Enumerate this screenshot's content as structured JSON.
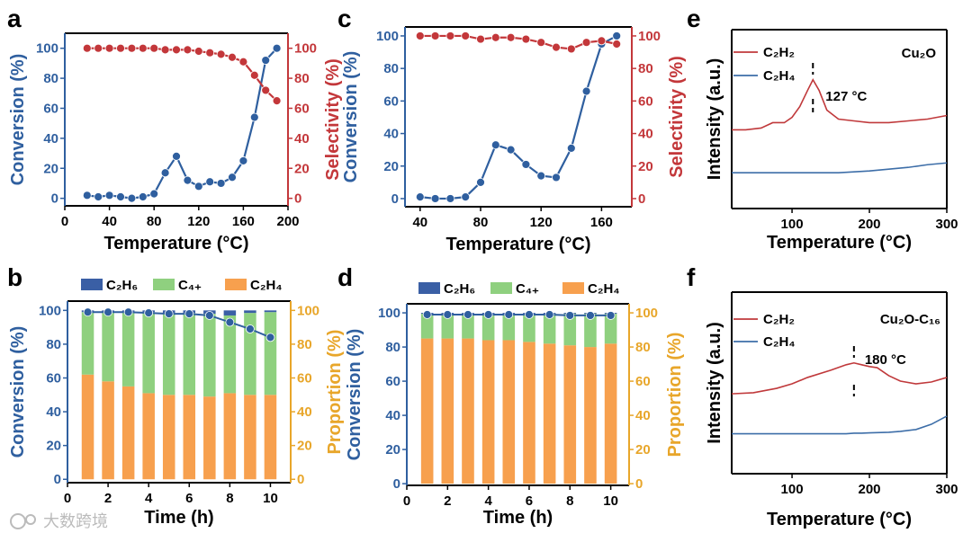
{
  "watermark": "大数跨境",
  "chart_data": [
    {
      "letter": "a",
      "type": "line",
      "xlabel": "Temperature (°C)",
      "ylabel": "Conversion (%)",
      "y2label": "Selectivity (%)",
      "xlim": [
        0,
        200
      ],
      "ylim": [
        0,
        100
      ],
      "y2lim": [
        0,
        100
      ],
      "xticks": [
        0,
        40,
        80,
        120,
        160,
        200
      ],
      "yticks": [
        0,
        20,
        40,
        60,
        80,
        100
      ],
      "y2ticks": [
        0,
        20,
        40,
        60,
        80,
        100
      ],
      "colors": {
        "y": "#2f5f9f",
        "y2": "#c3373a"
      },
      "x": [
        20,
        30,
        40,
        50,
        60,
        70,
        80,
        90,
        100,
        110,
        120,
        130,
        140,
        150,
        160,
        170,
        180,
        190
      ],
      "lines": [
        {
          "name": "Conversion",
          "axis": "y",
          "color": "#2f5f9f",
          "values": [
            2,
            1,
            2,
            1,
            0,
            1,
            3,
            17,
            28,
            12,
            8,
            11,
            10,
            14,
            25,
            54,
            92,
            100
          ]
        },
        {
          "name": "Selectivity",
          "axis": "y2",
          "color": "#c3373a",
          "values": [
            100,
            100,
            100,
            100,
            100,
            100,
            100,
            99,
            99,
            99,
            98,
            97,
            96,
            94,
            91,
            82,
            72,
            65
          ]
        }
      ]
    },
    {
      "letter": "c",
      "type": "line",
      "xlabel": "Temperature (°C)",
      "ylabel": "Conversion (%)",
      "y2label": "Selectivity (%)",
      "xlim": [
        30,
        180
      ],
      "ylim": [
        0,
        100
      ],
      "y2lim": [
        0,
        100
      ],
      "xticks": [
        40,
        80,
        120,
        160
      ],
      "yticks": [
        0,
        20,
        40,
        60,
        80,
        100
      ],
      "y2ticks": [
        0,
        20,
        40,
        60,
        80,
        100
      ],
      "colors": {
        "y": "#2f5f9f",
        "y2": "#c3373a"
      },
      "x": [
        40,
        50,
        60,
        70,
        80,
        90,
        100,
        110,
        120,
        130,
        140,
        150,
        160,
        170
      ],
      "lines": [
        {
          "name": "Conversion",
          "axis": "y",
          "color": "#2f5f9f",
          "values": [
            1,
            0,
            0,
            1,
            10,
            33,
            30,
            21,
            14,
            13,
            31,
            66,
            95,
            100
          ]
        },
        {
          "name": "Selectivity",
          "axis": "y2",
          "color": "#c3373a",
          "values": [
            100,
            100,
            100,
            100,
            98,
            99,
            99,
            98,
            96,
            93,
            92,
            96,
            97,
            95
          ]
        }
      ]
    },
    {
      "letter": "e",
      "type": "line",
      "xlabel": "Temperature (°C)",
      "ylabel": "Intensity (a.u.)",
      "xlim": [
        22,
        300
      ],
      "ylim": [
        0,
        1
      ],
      "xticks": [
        100,
        200,
        300
      ],
      "yticks": [],
      "colors": {
        "y": "#000000"
      },
      "sample": "Cu₂O",
      "annotation": {
        "x": 127,
        "label": "127 °C"
      },
      "x": [
        22,
        40,
        60,
        75,
        90,
        100,
        110,
        120,
        127,
        135,
        145,
        160,
        180,
        200,
        225,
        250,
        275,
        300
      ],
      "lines": [
        {
          "name": "C₂H₂",
          "axis": "y",
          "color": "#c0393b",
          "values": [
            0.44,
            0.44,
            0.45,
            0.48,
            0.48,
            0.51,
            0.57,
            0.66,
            0.72,
            0.66,
            0.55,
            0.5,
            0.49,
            0.48,
            0.48,
            0.49,
            0.5,
            0.52
          ]
        },
        {
          "name": "C₂H₄",
          "axis": "y",
          "color": "#3d6ea8",
          "values": [
            0.2,
            0.2,
            0.2,
            0.2,
            0.2,
            0.2,
            0.2,
            0.2,
            0.2,
            0.2,
            0.2,
            0.2,
            0.205,
            0.21,
            0.22,
            0.23,
            0.245,
            0.255
          ]
        }
      ]
    },
    {
      "letter": "b",
      "type": "bar",
      "xlabel": "Time (h)",
      "ylabel": "Conversion (%)",
      "y2label": "Proportion (%)",
      "xlim": [
        0,
        11
      ],
      "ylim": [
        0,
        100
      ],
      "y2lim": [
        0,
        100
      ],
      "xticks": [
        0,
        2,
        4,
        6,
        8,
        10
      ],
      "yticks": [
        0,
        20,
        40,
        60,
        80,
        100
      ],
      "y2ticks": [
        0,
        20,
        40,
        60,
        80,
        100
      ],
      "colors": {
        "y": "#2f5f9f",
        "y2": "#e8a62a"
      },
      "x": [
        1,
        2,
        3,
        4,
        5,
        6,
        7,
        8,
        9,
        10
      ],
      "bars": [
        {
          "name": "C₂H₄",
          "color": "#f7a04e",
          "values": [
            62,
            58,
            55,
            51,
            50,
            50,
            49,
            51,
            50,
            50
          ]
        },
        {
          "name": "C₄₊",
          "color": "#8fd07f",
          "values": [
            37,
            41,
            44,
            48,
            48.5,
            48.5,
            49,
            46,
            48.5,
            49
          ]
        },
        {
          "name": "C₂H₆",
          "color": "#3a5fa5",
          "values": [
            1,
            1,
            1,
            1,
            1.5,
            1.5,
            2,
            3,
            1.5,
            1
          ]
        }
      ],
      "lines": [
        {
          "name": "Conversion",
          "axis": "y",
          "color": "#2f5f9f",
          "values": [
            99,
            99,
            99,
            98.5,
            98,
            98,
            97,
            93,
            89,
            84
          ]
        }
      ]
    },
    {
      "letter": "d",
      "type": "bar",
      "xlabel": "Time (h)",
      "ylabel": "Conversion (%)",
      "y2label": "Proportion (%)",
      "xlim": [
        0,
        10.9
      ],
      "ylim": [
        0,
        100
      ],
      "y2lim": [
        0,
        100
      ],
      "xticks": [
        0,
        2,
        4,
        6,
        8,
        10
      ],
      "yticks": [
        0,
        20,
        40,
        60,
        80,
        100
      ],
      "y2ticks": [
        0,
        20,
        40,
        60,
        80,
        100
      ],
      "colors": {
        "y": "#2f5f9f",
        "y2": "#e8a62a"
      },
      "x": [
        1,
        2,
        3,
        4,
        5,
        6,
        7,
        8,
        9,
        10
      ],
      "bars": [
        {
          "name": "C₂H₄",
          "color": "#f7a04e",
          "values": [
            85,
            85,
            85,
            84,
            84,
            83,
            82,
            81,
            80,
            82
          ]
        },
        {
          "name": "C₄₊",
          "color": "#8fd07f",
          "values": [
            14.5,
            14.5,
            14.5,
            15.5,
            15.5,
            16.5,
            17.5,
            18.5,
            19.5,
            17.5
          ]
        },
        {
          "name": "C₂H₆",
          "color": "#3a5fa5",
          "values": [
            0.5,
            0.5,
            0.5,
            0.5,
            0.5,
            0.5,
            0.5,
            0.5,
            0.5,
            0.5
          ]
        }
      ],
      "lines": [
        {
          "name": "Conversion",
          "axis": "y",
          "color": "#2f5f9f",
          "values": [
            99,
            99,
            99,
            99,
            99,
            99,
            99,
            98.5,
            98.5,
            98.5
          ]
        }
      ]
    },
    {
      "letter": "f",
      "type": "line",
      "xlabel": "Temperature (°C)",
      "ylabel": "Intensity (a.u.)",
      "xlim": [
        22,
        300
      ],
      "ylim": [
        0,
        1
      ],
      "xticks": [
        100,
        200,
        300
      ],
      "yticks": [],
      "colors": {
        "y": "#000000"
      },
      "sample": "Cu₂O-C₁₆",
      "annotation": {
        "x": 180,
        "label": "180 °C"
      },
      "x": [
        22,
        50,
        80,
        100,
        120,
        150,
        170,
        180,
        190,
        200,
        210,
        225,
        240,
        260,
        280,
        300
      ],
      "lines": [
        {
          "name": "C₂H₂",
          "axis": "y",
          "color": "#c0393b",
          "values": [
            0.44,
            0.446,
            0.47,
            0.495,
            0.53,
            0.57,
            0.6,
            0.61,
            0.6,
            0.59,
            0.584,
            0.54,
            0.51,
            0.495,
            0.505,
            0.53
          ]
        },
        {
          "name": "C₂H₄",
          "axis": "y",
          "color": "#3d6ea8",
          "values": [
            0.22,
            0.22,
            0.22,
            0.22,
            0.22,
            0.22,
            0.22,
            0.223,
            0.223,
            0.225,
            0.226,
            0.228,
            0.233,
            0.243,
            0.272,
            0.317
          ]
        }
      ]
    }
  ]
}
